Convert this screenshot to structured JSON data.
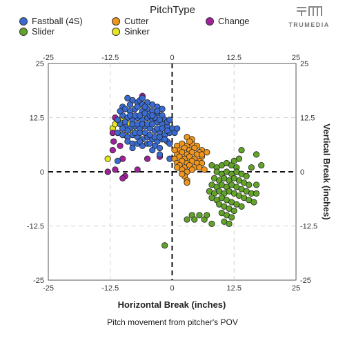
{
  "legend": {
    "title": "PitchType",
    "items": [
      {
        "label": "Fastball (4S)",
        "color": "#3a6bd1"
      },
      {
        "label": "Cutter",
        "color": "#f0961e"
      },
      {
        "label": "Change",
        "color": "#a0229b"
      },
      {
        "label": "Slider",
        "color": "#62a32a"
      },
      {
        "label": "Sinker",
        "color": "#e6e61e"
      }
    ]
  },
  "logo": {
    "text": "TRUMEDIA",
    "icon": "trumedia-logo-icon"
  },
  "caption": "Pitch movement from pitcher's POV",
  "chart_data": {
    "type": "scatter",
    "xlabel": "Horizontal Break (inches)",
    "ylabel": "Vertical Break (inches)",
    "xlim": [
      -25,
      25
    ],
    "ylim": [
      -25,
      25
    ],
    "x_ticks": [
      -25,
      -12.5,
      0,
      12.5,
      25
    ],
    "y_ticks": [
      -25,
      -12.5,
      0,
      12.5,
      25
    ],
    "x_tick_labels": [
      "-25",
      "-12.5",
      "0",
      "12.5",
      "25"
    ],
    "y_tick_labels": [
      "-25",
      "-12.5",
      "0",
      "12.5",
      "25"
    ],
    "grid": true,
    "zero_lines": true,
    "legend_position": "top",
    "series": [
      {
        "name": "Fastball (4S)",
        "color": "#3a6bd1",
        "points": [
          [
            -9,
            17
          ],
          [
            -8,
            16.5
          ],
          [
            -7,
            16
          ],
          [
            -6.5,
            16.5
          ],
          [
            -5,
            16
          ],
          [
            -4,
            15.5
          ],
          [
            -3,
            15
          ],
          [
            -10,
            15
          ],
          [
            -9.5,
            14.5
          ],
          [
            -8.5,
            14
          ],
          [
            -7.5,
            14.5
          ],
          [
            -6,
            14
          ],
          [
            -5,
            14.5
          ],
          [
            -4,
            14
          ],
          [
            -3,
            13.5
          ],
          [
            -2,
            13
          ],
          [
            -1.5,
            12
          ],
          [
            -10,
            13
          ],
          [
            -9,
            12.5
          ],
          [
            -8,
            12
          ],
          [
            -7,
            12.5
          ],
          [
            -6,
            12
          ],
          [
            -5,
            12.5
          ],
          [
            -4,
            12
          ],
          [
            -3,
            11.5
          ],
          [
            -2,
            11
          ],
          [
            -1,
            10.5
          ],
          [
            0,
            10
          ],
          [
            -10.5,
            11
          ],
          [
            -9.5,
            10.5
          ],
          [
            -8.5,
            10
          ],
          [
            -7.5,
            10.5
          ],
          [
            -6.5,
            10
          ],
          [
            -5.5,
            10.5
          ],
          [
            -4.5,
            10
          ],
          [
            -3.5,
            9.5
          ],
          [
            -2.5,
            9
          ],
          [
            -1.5,
            8.5
          ],
          [
            -0.5,
            9
          ],
          [
            0.5,
            9
          ],
          [
            1,
            10
          ],
          [
            -11,
            9
          ],
          [
            -10,
            8.5
          ],
          [
            -9,
            8
          ],
          [
            -8,
            8.5
          ],
          [
            -7,
            8
          ],
          [
            -6,
            7.5
          ],
          [
            -5,
            8
          ],
          [
            -4,
            7.5
          ],
          [
            -3,
            7
          ],
          [
            -2,
            7.5
          ],
          [
            -1,
            7
          ],
          [
            -9,
            7
          ],
          [
            -8,
            6.5
          ],
          [
            -7,
            6.5
          ],
          [
            -6,
            6
          ],
          [
            -5,
            6.5
          ],
          [
            -3.5,
            6
          ],
          [
            -2.5,
            5.5
          ],
          [
            -11,
            12
          ],
          [
            -10.5,
            14
          ],
          [
            -8.5,
            15.5
          ],
          [
            -7,
            15
          ],
          [
            -6,
            15.5
          ],
          [
            -5.5,
            15
          ],
          [
            -4.5,
            13
          ],
          [
            -3.5,
            12.5
          ],
          [
            -2.5,
            12
          ],
          [
            -1,
            11.5
          ],
          [
            -0.5,
            12
          ],
          [
            -9.5,
            11.5
          ],
          [
            -8,
            11
          ],
          [
            -7,
            11
          ],
          [
            -6,
            11
          ],
          [
            -5,
            11
          ],
          [
            -4,
            11
          ],
          [
            -3,
            10
          ],
          [
            -2,
            10
          ],
          [
            -1,
            9.5
          ],
          [
            -10,
            10
          ],
          [
            -9,
            9.5
          ],
          [
            -7.5,
            9
          ],
          [
            -6.5,
            9
          ],
          [
            -5.5,
            9
          ],
          [
            -4.5,
            8.5
          ],
          [
            -3.5,
            8
          ],
          [
            -2.5,
            8
          ],
          [
            -1.5,
            7.5
          ],
          [
            -0.5,
            6.5
          ],
          [
            -8.5,
            13
          ],
          [
            -7.5,
            13
          ],
          [
            -6.5,
            13
          ],
          [
            -5.5,
            13.5
          ],
          [
            -4,
            13
          ],
          [
            -3,
            14
          ],
          [
            -2,
            14.5
          ],
          [
            -6.5,
            7
          ],
          [
            -4.5,
            6.5
          ],
          [
            -8,
            5.5
          ],
          [
            -4,
            5
          ],
          [
            -2.5,
            4
          ],
          [
            -0.5,
            3
          ],
          [
            -11,
            2.5
          ],
          [
            -6,
            17
          ]
        ]
      },
      {
        "name": "Cutter",
        "color": "#f0961e",
        "points": [
          [
            1,
            6
          ],
          [
            2,
            6.5
          ],
          [
            3,
            6
          ],
          [
            4,
            6.5
          ],
          [
            5,
            6
          ],
          [
            6,
            5
          ],
          [
            1.5,
            5
          ],
          [
            2.5,
            5.5
          ],
          [
            3.5,
            5
          ],
          [
            4.5,
            5.5
          ],
          [
            5.5,
            4.5
          ],
          [
            1,
            4
          ],
          [
            2,
            4.5
          ],
          [
            3,
            4
          ],
          [
            4,
            4.5
          ],
          [
            5,
            4
          ],
          [
            6,
            3.5
          ],
          [
            0.5,
            3
          ],
          [
            1.5,
            3.5
          ],
          [
            2.5,
            3
          ],
          [
            3.5,
            3.5
          ],
          [
            4.5,
            3
          ],
          [
            5.5,
            2.5
          ],
          [
            1,
            2
          ],
          [
            2,
            2.5
          ],
          [
            3,
            2
          ],
          [
            4,
            2.5
          ],
          [
            5,
            2
          ],
          [
            6,
            2
          ],
          [
            1.5,
            1.5
          ],
          [
            2.5,
            1
          ],
          [
            3.5,
            1.5
          ],
          [
            4.5,
            1
          ],
          [
            5.5,
            1
          ],
          [
            2,
            0.5
          ],
          [
            3,
            0
          ],
          [
            4,
            0.5
          ],
          [
            3,
            8
          ],
          [
            4,
            7.5
          ],
          [
            6,
            4
          ],
          [
            1,
            1
          ],
          [
            2.5,
            -1
          ],
          [
            3,
            -2
          ],
          [
            3,
            -2.5
          ],
          [
            3.5,
            7
          ],
          [
            7,
            4.5
          ],
          [
            6.5,
            0.5
          ],
          [
            2,
            -0.5
          ],
          [
            0.5,
            5
          ]
        ]
      },
      {
        "name": "Change",
        "color": "#a0229b",
        "points": [
          [
            -6,
            17.5
          ],
          [
            -11.5,
            12.5
          ],
          [
            -12,
            9
          ],
          [
            -11.8,
            7
          ],
          [
            -12,
            5
          ],
          [
            -10.5,
            6
          ],
          [
            -10,
            3
          ],
          [
            -11.5,
            0.5
          ],
          [
            -9.5,
            -1
          ],
          [
            -7,
            0.5
          ],
          [
            -5,
            3
          ],
          [
            -2.5,
            3.5
          ],
          [
            -9,
            17
          ],
          [
            -13,
            0
          ],
          [
            -10,
            -1.5
          ]
        ]
      },
      {
        "name": "Slider",
        "color": "#62a32a",
        "points": [
          [
            8,
            1.5
          ],
          [
            9,
            1
          ],
          [
            10,
            1.5
          ],
          [
            11,
            2
          ],
          [
            12,
            1.5
          ],
          [
            13,
            1
          ],
          [
            9,
            0
          ],
          [
            10,
            -0.5
          ],
          [
            11,
            0
          ],
          [
            12,
            -0.5
          ],
          [
            13,
            0
          ],
          [
            14,
            -0.5
          ],
          [
            15,
            -1
          ],
          [
            8.5,
            -1.5
          ],
          [
            9.5,
            -2
          ],
          [
            10.5,
            -1.5
          ],
          [
            11.5,
            -2
          ],
          [
            12.5,
            -1.5
          ],
          [
            13.5,
            -2
          ],
          [
            14.5,
            -2.5
          ],
          [
            15.5,
            -3
          ],
          [
            8,
            -3
          ],
          [
            9,
            -3.5
          ],
          [
            10,
            -3
          ],
          [
            11,
            -3.5
          ],
          [
            12,
            -3
          ],
          [
            13,
            -3.5
          ],
          [
            14,
            -4
          ],
          [
            15,
            -4.5
          ],
          [
            16,
            -5
          ],
          [
            7.5,
            -4.5
          ],
          [
            8.5,
            -5
          ],
          [
            9.5,
            -4.5
          ],
          [
            10.5,
            -5
          ],
          [
            11.5,
            -4.5
          ],
          [
            12.5,
            -5
          ],
          [
            13.5,
            -5.5
          ],
          [
            14.5,
            -6
          ],
          [
            15.5,
            -6.5
          ],
          [
            8,
            -6
          ],
          [
            9,
            -6.5
          ],
          [
            10,
            -6
          ],
          [
            11,
            -6.5
          ],
          [
            12,
            -7
          ],
          [
            13,
            -7.5
          ],
          [
            14,
            -8
          ],
          [
            9.5,
            -7.5
          ],
          [
            10.5,
            -8
          ],
          [
            11.5,
            -8.5
          ],
          [
            12.5,
            -9
          ],
          [
            10,
            -9.5
          ],
          [
            11,
            -10
          ],
          [
            12,
            -10.5
          ],
          [
            10.5,
            -11.5
          ],
          [
            11.5,
            -12
          ],
          [
            16,
            1
          ],
          [
            17,
            -3
          ],
          [
            16.5,
            -7
          ],
          [
            17,
            -5
          ],
          [
            18,
            1.5
          ],
          [
            13.5,
            3
          ],
          [
            12.5,
            2.5
          ],
          [
            14,
            5
          ],
          [
            17,
            4
          ],
          [
            8,
            -12
          ],
          [
            4,
            -10
          ],
          [
            3,
            -11
          ],
          [
            4.5,
            -11
          ],
          [
            6.5,
            -11
          ],
          [
            -1.5,
            -17
          ],
          [
            5.5,
            -10
          ],
          [
            7,
            -10
          ]
        ]
      },
      {
        "name": "Sinker",
        "color": "#e6e61e",
        "points": [
          [
            -11,
            9
          ],
          [
            -10,
            10
          ],
          [
            -9,
            11
          ],
          [
            -11,
            12
          ],
          [
            -12,
            10
          ],
          [
            -8.5,
            10
          ],
          [
            -9.5,
            8.5
          ],
          [
            -11.5,
            11
          ],
          [
            -10,
            12.5
          ],
          [
            -13,
            3
          ],
          [
            -8,
            9.5
          ]
        ]
      }
    ]
  }
}
